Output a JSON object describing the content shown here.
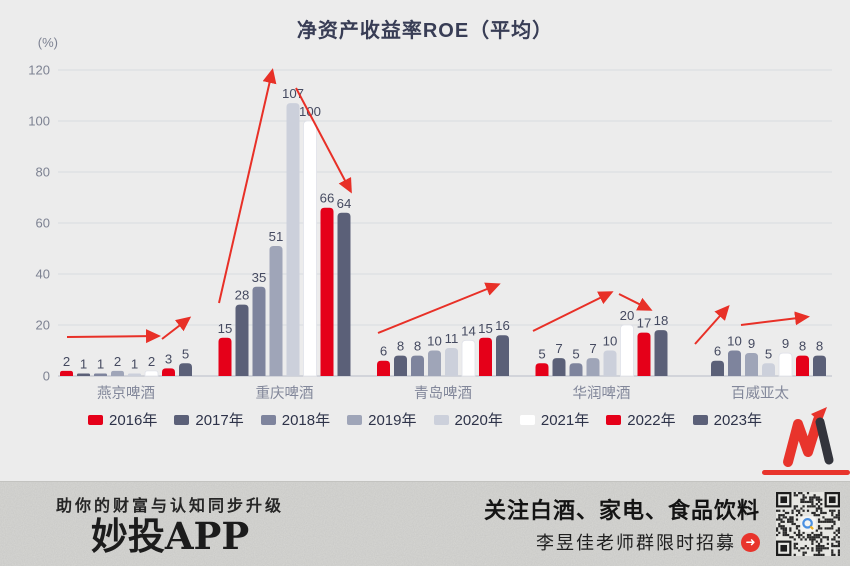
{
  "chart_data": {
    "type": "bar",
    "title": "净资产收益率ROE（平均）",
    "unit_label": "(%)",
    "xlabel": "",
    "ylabel": "(%)",
    "ylim": [
      0,
      120
    ],
    "yticks": [
      0,
      20,
      40,
      60,
      80,
      100,
      120
    ],
    "grid": true,
    "legend_position": "bottom",
    "categories": [
      "燕京啤酒",
      "重庆啤酒",
      "青岛啤酒",
      "华润啤酒",
      "百威亚太"
    ],
    "series": [
      {
        "name": "2016年",
        "color": "#e50019",
        "values": [
          2,
          15,
          6,
          5,
          null
        ]
      },
      {
        "name": "2017年",
        "color": "#5b6078",
        "values": [
          1,
          28,
          8,
          7,
          6
        ]
      },
      {
        "name": "2018年",
        "color": "#7e849d",
        "values": [
          1,
          35,
          8,
          5,
          10
        ]
      },
      {
        "name": "2019年",
        "color": "#9fa5b8",
        "values": [
          2,
          51,
          10,
          7,
          9
        ]
      },
      {
        "name": "2020年",
        "color": "#ccd0db",
        "values": [
          1,
          107,
          11,
          10,
          5
        ]
      },
      {
        "name": "2021年",
        "color": "#ffffff",
        "values": [
          2,
          100,
          14,
          20,
          9
        ]
      },
      {
        "name": "2022年",
        "color": "#e50019",
        "values": [
          3,
          66,
          15,
          17,
          8
        ]
      },
      {
        "name": "2023年",
        "color": "#5b6078",
        "values": [
          5,
          64,
          16,
          18,
          8
        ]
      }
    ],
    "annotations": {
      "color": "#e8261d",
      "arrows": [
        {
          "points": [
            [
              67,
              337
            ],
            [
              157,
              336
            ]
          ]
        },
        {
          "points": [
            [
              162,
              339
            ],
            [
              188,
              319
            ]
          ]
        },
        {
          "points": [
            [
              219,
              303
            ],
            [
              272,
              72
            ]
          ]
        },
        {
          "points": [
            [
              296,
              88
            ],
            [
              350,
              190
            ]
          ]
        },
        {
          "points": [
            [
              378,
              333
            ],
            [
              497,
              285
            ]
          ]
        },
        {
          "points": [
            [
              533,
              331
            ],
            [
              610,
              293
            ]
          ]
        },
        {
          "points": [
            [
              619,
              294
            ],
            [
              649,
              309
            ]
          ]
        },
        {
          "points": [
            [
              695,
              344
            ],
            [
              727,
              308
            ]
          ]
        },
        {
          "points": [
            [
              741,
              325
            ],
            [
              806,
              317
            ]
          ]
        }
      ]
    }
  },
  "footer": {
    "tagline": "助你的财富与认知同步升级",
    "brand": "妙投APP",
    "headline": "关注白酒、家电、食品饮料",
    "subline": "李昱佳老师群限时招募",
    "arrow_icon": "➜"
  }
}
